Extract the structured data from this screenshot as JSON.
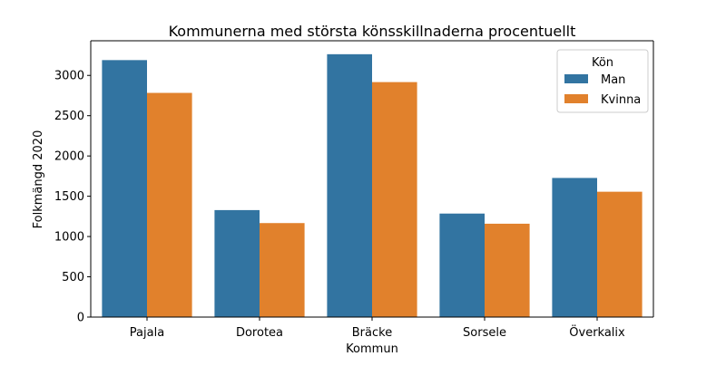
{
  "chart_data": {
    "type": "bar",
    "title": "Kommunerna med största könsskillnaderna procentuellt",
    "xlabel": "Kommun",
    "ylabel": "Folkmängd 2020",
    "categories": [
      "Pajala",
      "Dorotea",
      "Bräcke",
      "Sorsele",
      "Överkalix"
    ],
    "series": [
      {
        "name": "Man",
        "color": "#3274a1",
        "values": [
          3190,
          1328,
          3263,
          1285,
          1727
        ]
      },
      {
        "name": "Kvinna",
        "color": "#e1812c",
        "values": [
          2783,
          1167,
          2917,
          1159,
          1556
        ]
      }
    ],
    "ylim": [
      0,
      3430
    ],
    "yticks": [
      0,
      500,
      1000,
      1500,
      2000,
      2500,
      3000
    ],
    "grid": false,
    "legend": {
      "title": "Kön",
      "placement": "top-right"
    }
  }
}
